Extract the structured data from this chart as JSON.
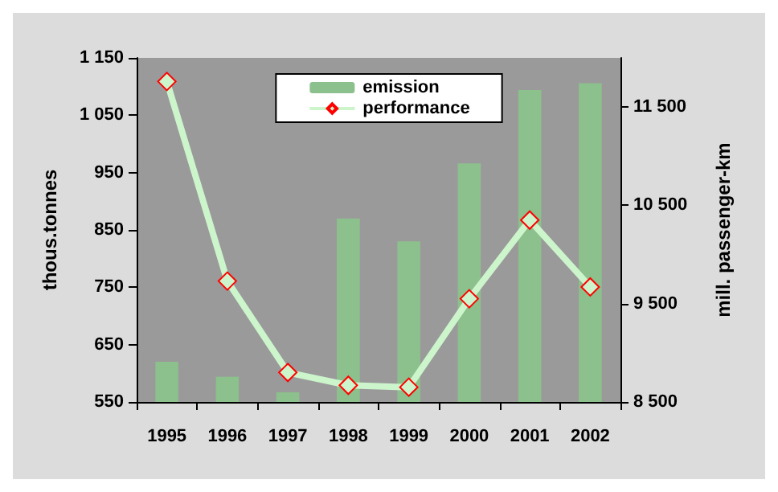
{
  "chart_data": {
    "type": "bar",
    "ylabel": "thous.tonnes",
    "y2label": "mill. passenger-km",
    "categories": [
      "1995",
      "1996",
      "1997",
      "1998",
      "1999",
      "2000",
      "2001",
      "2002"
    ],
    "series": [
      {
        "name": "emission",
        "color": "#8cc08c",
        "values": [
          620,
          594,
          567,
          870,
          830,
          966,
          1094,
          1106
        ]
      },
      {
        "name": "performance",
        "type": "line",
        "axis": "y2",
        "color": "#ccf5cc",
        "marker": "diamond",
        "values": [
          11760,
          9730,
          8800,
          8670,
          8650,
          9550,
          10350,
          9670
        ]
      }
    ],
    "ylim": [
      550,
      1150
    ],
    "yticks": [
      550,
      650,
      750,
      850,
      950,
      {
        "value": 1050,
        "label": "1 050"
      },
      {
        "value": 1150,
        "label": "1 150"
      }
    ],
    "y2lim": [
      8500,
      12000
    ],
    "y2ticks": [
      {
        "value": 8500,
        "label": "8 500"
      },
      {
        "value": 9500,
        "label": "9 500"
      },
      {
        "value": 10500,
        "label": "10 500"
      },
      {
        "value": 11500,
        "label": "11 500"
      }
    ],
    "grid": false,
    "legend": "top"
  }
}
